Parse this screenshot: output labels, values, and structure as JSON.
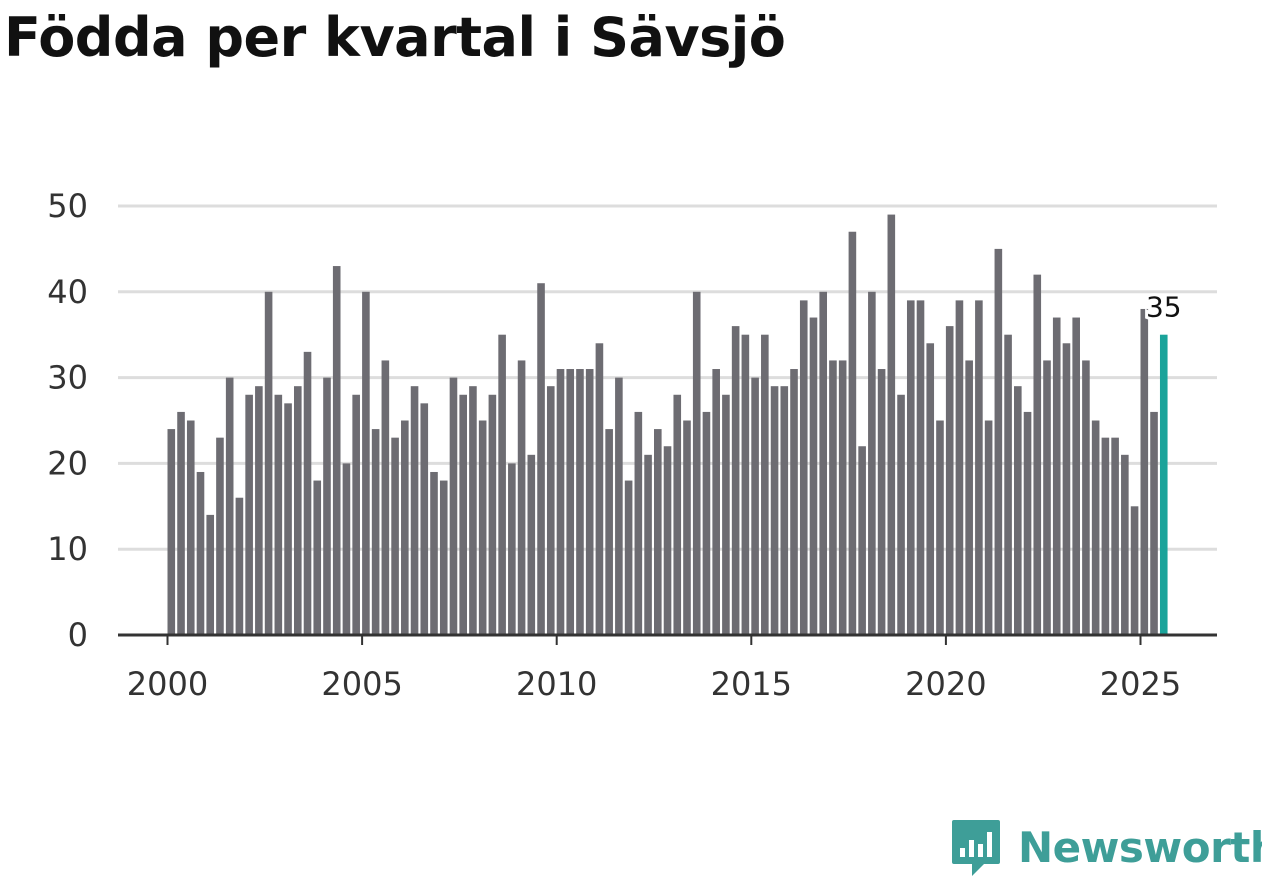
{
  "chart_data": {
    "type": "bar",
    "title": "Födda per kvartal i Sävsjö",
    "xlabel": "",
    "ylabel": "",
    "ylim": [
      0,
      50
    ],
    "yticks": [
      0,
      10,
      20,
      30,
      40,
      50
    ],
    "xticks": [
      "2000",
      "2005",
      "2010",
      "2015",
      "2020",
      "2025"
    ],
    "start_year": 2000,
    "grid": true,
    "values": [
      24,
      26,
      25,
      19,
      14,
      23,
      30,
      16,
      28,
      29,
      40,
      28,
      27,
      29,
      33,
      18,
      30,
      43,
      20,
      28,
      40,
      24,
      32,
      23,
      25,
      29,
      27,
      19,
      18,
      30,
      28,
      29,
      25,
      28,
      35,
      20,
      32,
      21,
      41,
      29,
      31,
      31,
      31,
      31,
      34,
      24,
      30,
      18,
      26,
      21,
      24,
      22,
      28,
      25,
      40,
      26,
      31,
      28,
      36,
      35,
      30,
      35,
      29,
      29,
      31,
      39,
      37,
      40,
      32,
      32,
      47,
      22,
      40,
      31,
      49,
      28,
      39,
      39,
      34,
      25,
      36,
      39,
      32,
      39,
      25,
      45,
      35,
      29,
      26,
      42,
      32,
      37,
      34,
      37,
      32,
      25,
      23,
      23,
      21,
      15,
      38,
      26,
      35
    ],
    "highlight_index": 102,
    "highlight_label": "35",
    "bar_color": "#6d6c72",
    "highlight_color": "#1aa39a"
  },
  "brand": {
    "name": "Newsworthy",
    "icon": "newsworthy-logo-icon",
    "color": "#3e9e98"
  }
}
